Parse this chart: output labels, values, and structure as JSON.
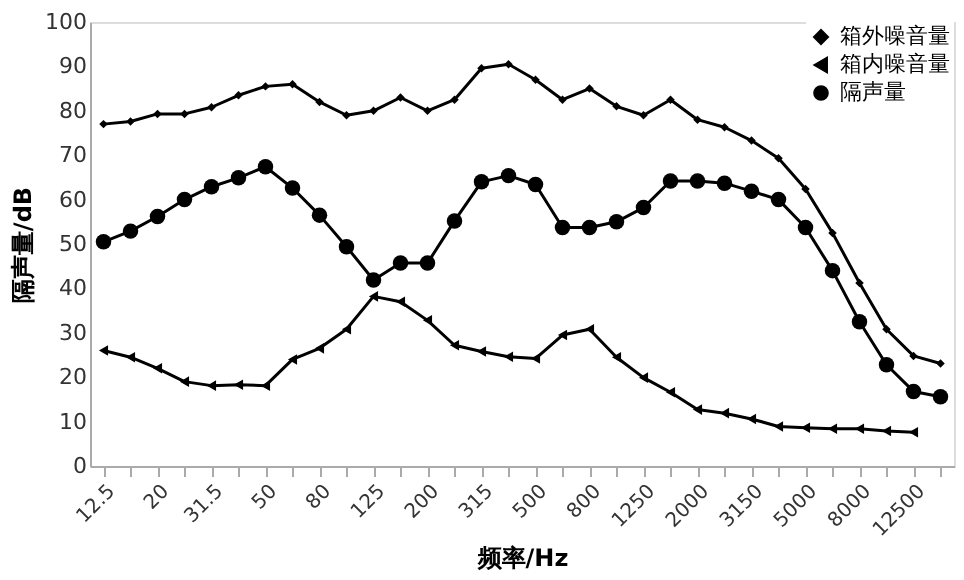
{
  "chart_data": {
    "type": "line",
    "xlabel": "频率/Hz",
    "ylabel": "隔声量/dB",
    "categories": [
      "12.5",
      null,
      "20",
      null,
      "31.5",
      null,
      "50",
      null,
      "80",
      null,
      "125",
      null,
      "200",
      null,
      "315",
      null,
      "500",
      null,
      "800",
      null,
      "1250",
      null,
      "2000",
      null,
      "3150",
      null,
      "5000",
      null,
      "8000",
      null,
      "12500",
      null
    ],
    "series": [
      {
        "name": "箱外噪音量",
        "color": "#000000",
        "marker": "diamond",
        "values": [
          77,
          77.6,
          79.3,
          79.3,
          80.8,
          83.5,
          85.5,
          86,
          82,
          79,
          80,
          83,
          80,
          82.5,
          89.6,
          90.5,
          87,
          82.5,
          85,
          81,
          79,
          82.5,
          78,
          76.3,
          73.3,
          69.3,
          62.4,
          52.5,
          41.2,
          30.8,
          24.8,
          23.1
        ]
      },
      {
        "name": "箱内噪音量",
        "color": "#000000",
        "marker": "triangle",
        "values": [
          26,
          24.5,
          22,
          19,
          18.1,
          18.3,
          18.1,
          24,
          26.5,
          30.8,
          38.2,
          37,
          32.8,
          27.2,
          25.8,
          24.6,
          24.2,
          29.5,
          30.8,
          24.5,
          19.9,
          16.6,
          12.7,
          11.9,
          10.6,
          8.9,
          8.6,
          8.4,
          8.4,
          7.9,
          7.6,
          null
        ]
      },
      {
        "name": "隔声量",
        "color": "#000000",
        "marker": "circle",
        "values": [
          50.5,
          52.9,
          56.2,
          60,
          62.9,
          64.9,
          67.4,
          62.6,
          56.5,
          49.4,
          41.9,
          45.7,
          45.7,
          55.2,
          64,
          65.4,
          63.4,
          53.7,
          53.7,
          55,
          58.2,
          64.2,
          64.2,
          63.7,
          61.9,
          60,
          53.7,
          44,
          32.5,
          22.8,
          16.8,
          15.6
        ]
      }
    ],
    "ylim": [
      0,
      100
    ],
    "yticks": [
      0,
      10,
      20,
      30,
      40,
      50,
      60,
      70,
      80,
      90,
      100
    ],
    "grid": false,
    "legend": "top right",
    "line_style": "solid"
  }
}
